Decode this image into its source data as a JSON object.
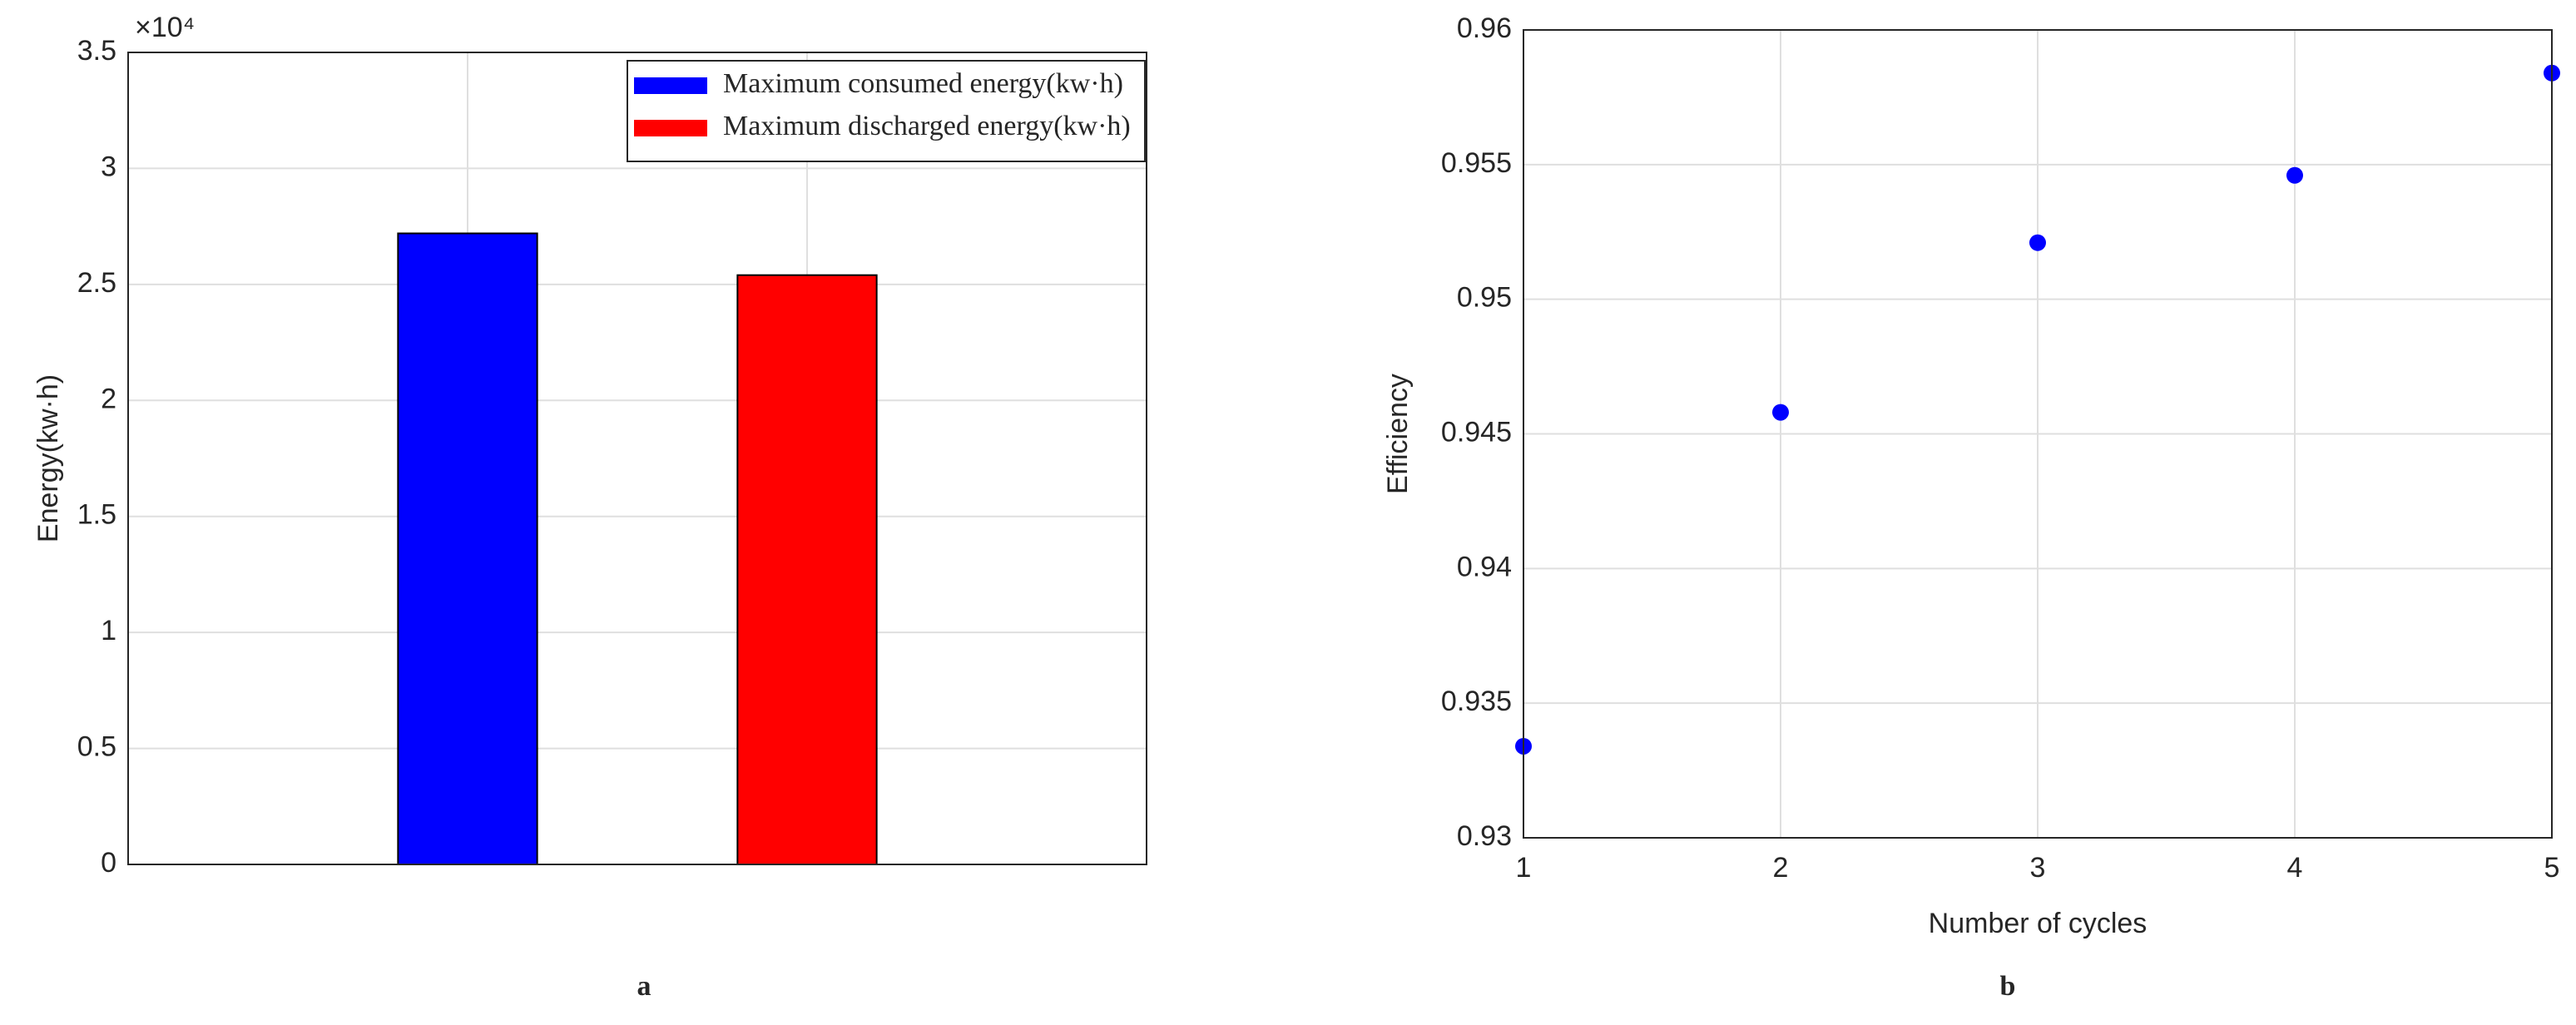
{
  "chart_data": [
    {
      "type": "bar",
      "panel_label": "a",
      "y_label": "Energy(kw·h)",
      "y_multiplier": "×10⁴",
      "categories": [
        null,
        null
      ],
      "series": [
        {
          "name": "Maximum consumed energy(kw·h)",
          "color": "#0000ff",
          "values": [
            27200,
            null
          ]
        },
        {
          "name": "Maximum discharged energy(kw·h)",
          "color": "#ff0000",
          "values": [
            null,
            25400
          ]
        }
      ],
      "ylim": [
        0,
        35000
      ],
      "yticks": [
        0,
        {
          "value": 5000,
          "label": "0.5"
        },
        {
          "value": 10000,
          "label": "1"
        },
        {
          "value": 15000,
          "label": "1.5"
        },
        {
          "value": 20000,
          "label": "2"
        },
        {
          "value": 25000,
          "label": "2.5"
        },
        {
          "value": 30000,
          "label": "3"
        },
        {
          "value": 35000,
          "label": "3.5"
        }
      ],
      "grid": true,
      "legend": "upper right"
    },
    {
      "type": "scatter",
      "panel_label": "b",
      "x_label": "Number of cycles",
      "y_label": "Efficiency",
      "x": [
        1,
        2,
        3,
        4,
        5
      ],
      "values": [
        0.9334,
        0.9458,
        0.9521,
        0.9546,
        0.9584
      ],
      "color": "#0000ff",
      "xlim": [
        1,
        5
      ],
      "xticks": [
        1,
        2,
        3,
        4,
        5
      ],
      "ylim": [
        0.93,
        0.96
      ],
      "yticks": [
        0.93,
        0.935,
        0.94,
        0.945,
        0.95,
        0.955,
        0.96
      ],
      "grid": true
    }
  ]
}
